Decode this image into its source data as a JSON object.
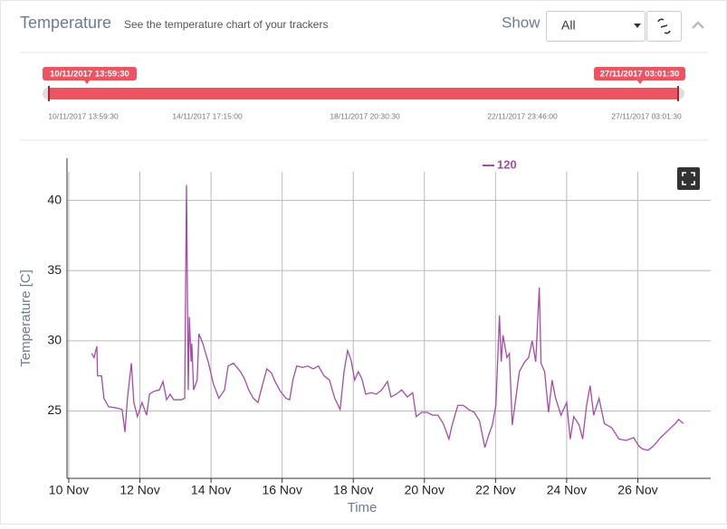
{
  "header": {
    "title": "Temperature",
    "subtitle": "See the temperature chart of your trackers",
    "show_label": "Show",
    "select_value": "All"
  },
  "range_slider": {
    "start_label": "10/11/2017 13:59:30",
    "end_label": "27/11/2017 03:01:30",
    "ticks": [
      "10/11/2017 13:59:30",
      "14/11/2017 17:15:00",
      "18/11/2017 20:30:30",
      "22/11/2017 23:46:00",
      "27/11/2017 03:01:30"
    ]
  },
  "chart_data": {
    "type": "line",
    "xlabel": "Time",
    "ylabel": "Temperature [C]",
    "legend": "top",
    "grid": true,
    "xlim": [
      9.95,
      28.05
    ],
    "ylim": [
      20.2,
      43
    ],
    "xticks": [
      {
        "value": 10,
        "label": "10 Nov"
      },
      {
        "value": 12,
        "label": "12 Nov"
      },
      {
        "value": 14,
        "label": "14 Nov"
      },
      {
        "value": 16,
        "label": "16 Nov"
      },
      {
        "value": 18,
        "label": "18 Nov"
      },
      {
        "value": 20,
        "label": "20 Nov"
      },
      {
        "value": 22,
        "label": "22 Nov"
      },
      {
        "value": 24,
        "label": "24 Nov"
      },
      {
        "value": 26,
        "label": "26 Nov"
      }
    ],
    "yticks": [
      25,
      30,
      35,
      40
    ],
    "x": [
      10.64,
      10.71,
      10.79,
      10.81,
      10.92,
      10.99,
      11.12,
      11.37,
      11.5,
      11.58,
      11.65,
      11.76,
      11.83,
      11.93,
      12.06,
      12.19,
      12.27,
      12.39,
      12.55,
      12.65,
      12.75,
      12.85,
      12.95,
      13.16,
      13.26,
      13.31,
      13.36,
      13.39,
      13.44,
      13.46,
      13.51,
      13.61,
      13.66,
      13.77,
      13.92,
      14.07,
      14.22,
      14.38,
      14.48,
      14.63,
      14.73,
      14.83,
      14.94,
      15.06,
      15.19,
      15.32,
      15.45,
      15.57,
      15.7,
      15.8,
      15.95,
      16.11,
      16.21,
      16.31,
      16.41,
      16.57,
      16.72,
      16.87,
      17.02,
      17.18,
      17.33,
      17.48,
      17.63,
      17.74,
      17.84,
      17.94,
      18.04,
      18.14,
      18.24,
      18.35,
      18.5,
      18.65,
      18.8,
      18.96,
      19.06,
      19.21,
      19.36,
      19.52,
      19.67,
      19.77,
      19.92,
      20.08,
      20.23,
      20.38,
      20.53,
      20.69,
      20.79,
      20.94,
      21.09,
      21.25,
      21.4,
      21.55,
      21.7,
      21.81,
      21.91,
      22.01,
      22.11,
      22.16,
      22.21,
      22.32,
      22.39,
      22.47,
      22.57,
      22.67,
      22.82,
      22.93,
      23.03,
      23.13,
      23.23,
      23.28,
      23.38,
      23.49,
      23.59,
      23.69,
      23.84,
      24.0,
      24.1,
      24.2,
      24.35,
      24.45,
      24.56,
      24.66,
      24.76,
      24.91,
      25.06,
      25.27,
      25.47,
      25.67,
      25.88,
      26.03,
      26.13,
      26.29,
      26.44,
      26.64,
      26.85,
      27.05,
      27.15,
      27.28
    ],
    "series": [
      {
        "name": "120",
        "color": "#a64ca6",
        "values": [
          29.1,
          28.8,
          29.6,
          27.5,
          27.5,
          25.9,
          25.3,
          25.2,
          25.1,
          23.5,
          25.9,
          28.4,
          25.6,
          24.6,
          25.6,
          24.7,
          26.2,
          26.4,
          26.5,
          27.1,
          25.8,
          26.2,
          25.8,
          25.8,
          25.9,
          41.1,
          26.5,
          31.7,
          28.5,
          29.8,
          26.5,
          27.2,
          30.5,
          29.8,
          28.5,
          26.9,
          25.9,
          26.5,
          28.2,
          28.4,
          28.1,
          27.8,
          27.3,
          26.5,
          25.9,
          25.6,
          26.9,
          28.0,
          27.7,
          27.1,
          26.4,
          25.9,
          25.8,
          27.3,
          28.2,
          28.1,
          28.2,
          28.0,
          28.2,
          27.5,
          27.2,
          25.9,
          25.1,
          27.8,
          29.3,
          28.6,
          27.2,
          27.8,
          27.3,
          26.2,
          26.3,
          26.2,
          26.5,
          27.1,
          26.0,
          26.2,
          26.5,
          26.0,
          26.3,
          24.6,
          24.9,
          24.9,
          24.7,
          24.7,
          24.1,
          23.0,
          24.1,
          25.4,
          25.4,
          25.1,
          24.9,
          24.3,
          22.4,
          23.3,
          24.0,
          25.4,
          31.8,
          28.5,
          30.4,
          28.8,
          29.1,
          24.0,
          25.9,
          27.8,
          28.5,
          28.8,
          30.0,
          28.5,
          33.8,
          28.4,
          27.8,
          24.9,
          27.2,
          25.9,
          24.7,
          25.6,
          23.0,
          24.6,
          24.0,
          23.0,
          25.4,
          26.8,
          24.7,
          25.9,
          24.1,
          23.8,
          23.0,
          22.9,
          23.1,
          22.5,
          22.3,
          22.2,
          22.5,
          23.1,
          23.6,
          24.1,
          24.4,
          24.1
        ]
      }
    ]
  }
}
